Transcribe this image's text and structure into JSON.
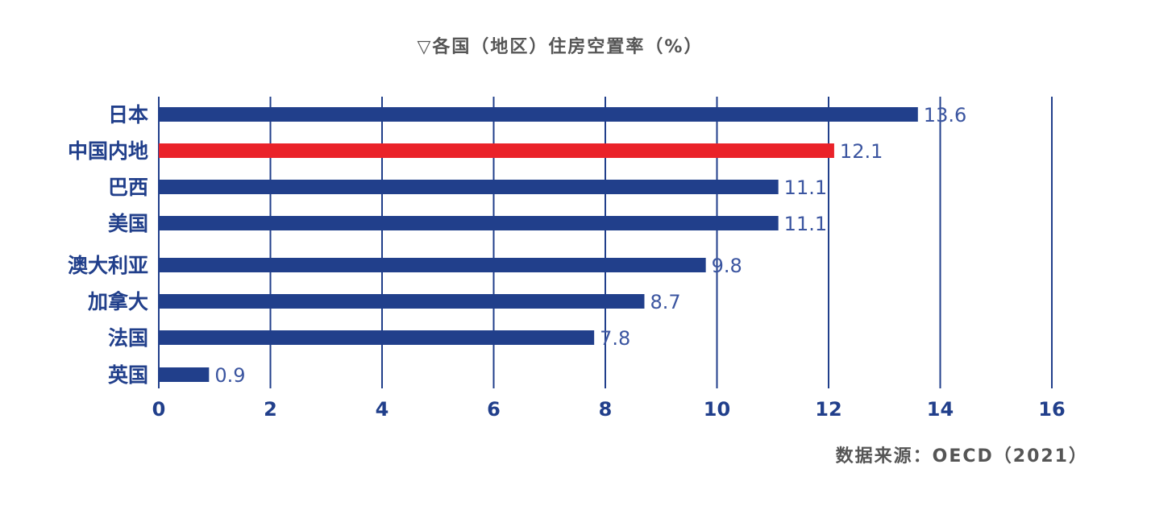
{
  "title": "▽各国（地区）住房空置率（%）",
  "source": "数据来源：OECD（2021）",
  "colors": {
    "bar": "#213f8b",
    "highlight": "#ea2229",
    "grid": "#213f8b",
    "label": "#213f8b",
    "value": "#3b55a0"
  },
  "chart_data": {
    "type": "bar",
    "orientation": "horizontal",
    "title": "▽各国（地区）住房空置率（%）",
    "categories": [
      "日本",
      "中国内地",
      "巴西",
      "美国",
      "澳大利亚",
      "加拿大",
      "法国",
      "英国"
    ],
    "values": [
      13.6,
      12.1,
      11.1,
      11.1,
      9.8,
      8.7,
      7.8,
      0.9
    ],
    "value_labels": [
      "13.6",
      "12.1",
      "11.1",
      "11.1",
      "9.8",
      "8.7",
      "7.8",
      "0.9"
    ],
    "highlight_category": "中国内地",
    "xlim": [
      0,
      16
    ],
    "xticks": [
      "0",
      "2",
      "4",
      "6",
      "8",
      "10",
      "12",
      "14",
      "16"
    ],
    "xlabel": "",
    "ylabel": "",
    "grid": "vertical"
  }
}
